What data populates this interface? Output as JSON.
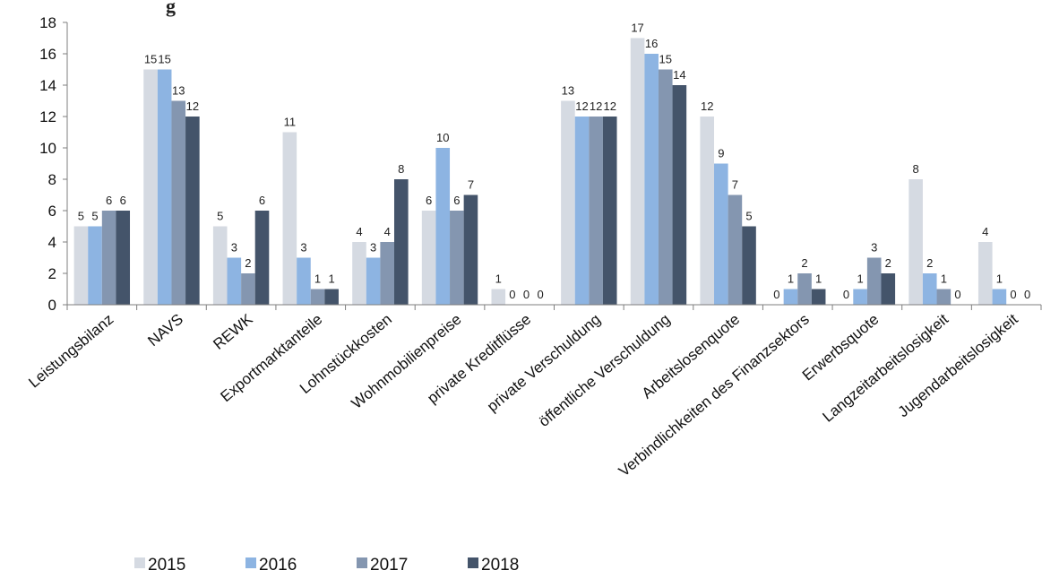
{
  "chart_data": {
    "type": "bar",
    "title": "",
    "xlabel": "",
    "ylabel": "",
    "ylim": [
      0,
      18
    ],
    "yticks": [
      0,
      2,
      4,
      6,
      8,
      10,
      12,
      14,
      16,
      18
    ],
    "grid": false,
    "legend_position": "bottom-left",
    "categories": [
      "Leistungsbilanz",
      "NAVS",
      "REWK",
      "Exportmarktanteile",
      "Lohnstückkosten",
      "Wohnmobilienpreise",
      "private Kreditflüsse",
      "private Verschuldung",
      "öffentliche Verschuldung",
      "Arbeitslosenquote",
      "Verbindlichkeiten des Finanzsektors",
      "Erwerbsquote",
      "Langzeitarbeitslosigkeit",
      "Jugendarbeitslosigkeit"
    ],
    "series": [
      {
        "name": "2015",
        "color": "#d5dae2",
        "values": [
          5,
          15,
          5,
          11,
          4,
          6,
          1,
          13,
          17,
          12,
          0,
          0,
          8,
          4
        ]
      },
      {
        "name": "2016",
        "color": "#8db4e2",
        "values": [
          5,
          15,
          3,
          3,
          3,
          10,
          0,
          12,
          16,
          9,
          1,
          1,
          2,
          1
        ]
      },
      {
        "name": "2017",
        "color": "#8496b0",
        "values": [
          6,
          13,
          2,
          1,
          4,
          6,
          0,
          12,
          15,
          7,
          2,
          3,
          1,
          0
        ]
      },
      {
        "name": "2018",
        "color": "#44546a",
        "values": [
          6,
          12,
          6,
          1,
          8,
          7,
          0,
          12,
          14,
          5,
          1,
          2,
          0,
          0
        ]
      }
    ]
  },
  "header_fragment": "g"
}
